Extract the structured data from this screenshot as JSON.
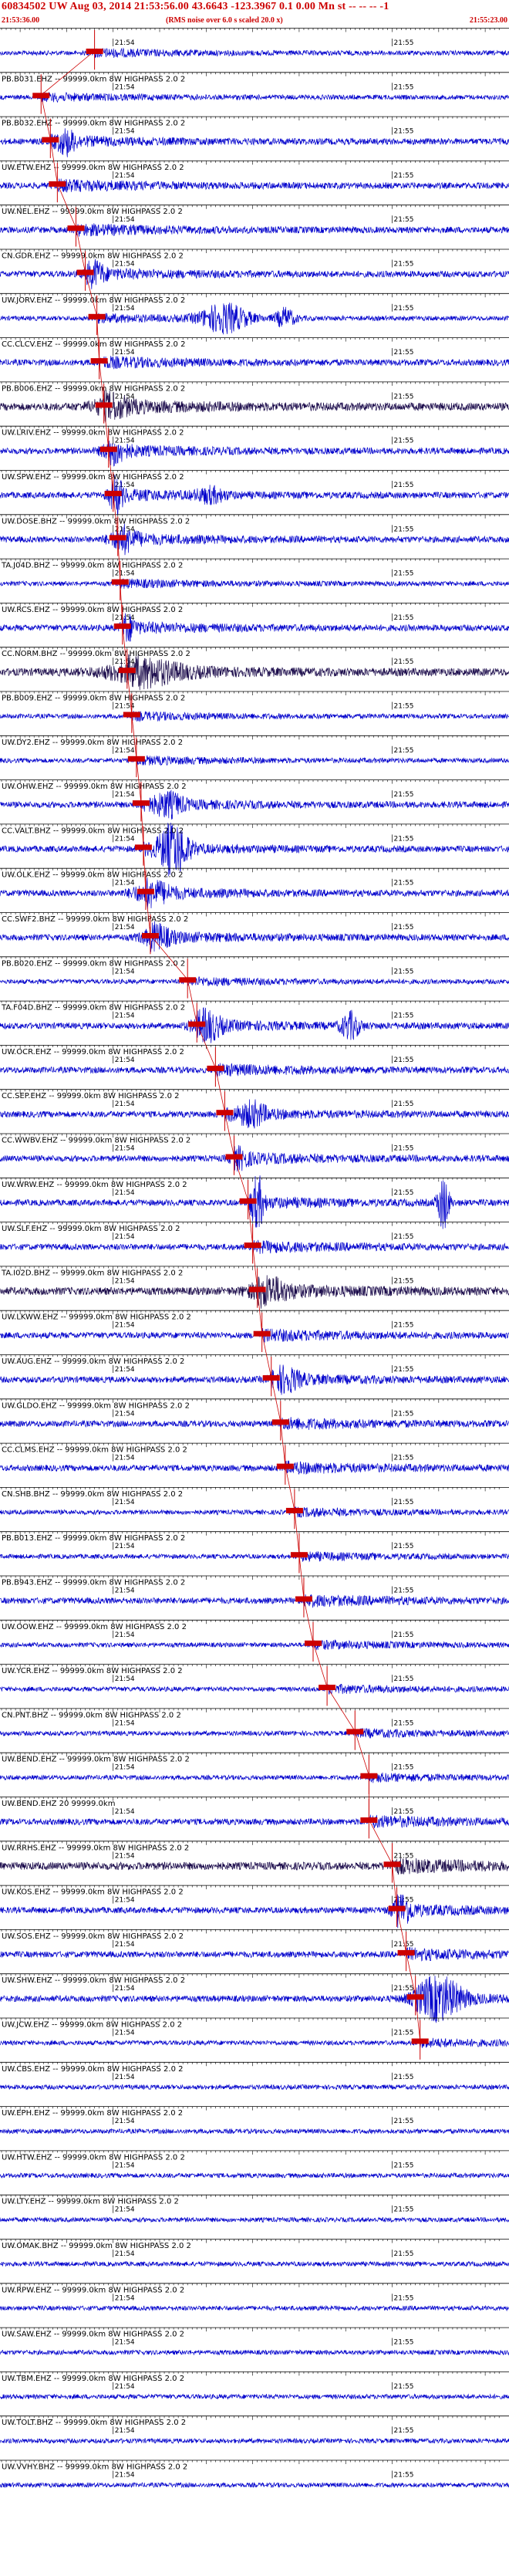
{
  "header": {
    "title": "60834502 UW Aug 03, 2014 21:53:56.00   43.6643  -123.3967   0.1 0.00 Mn st -- -- -- -1",
    "start_time": "21:53:36.00",
    "end_time": "21:55:23.00",
    "note": "(RMS noise over 6.0 s scaled 20.0 x)"
  },
  "minute_labels": [
    "21:54",
    "21:55"
  ],
  "colors": {
    "trace_blue": "#0000cc",
    "trace_dark": "#1a0a4a",
    "pick_red": "#cc0000",
    "label_text": "#000000",
    "axis": "#000000"
  },
  "traces": [
    {
      "label": "",
      "pick_sec": 20.0,
      "amp": 3,
      "bursts": []
    },
    {
      "label": "PB.B031.EHZ -- 99999.0km 8W  HIGHPASS  2.0  2",
      "pick_sec": 8.5,
      "amp": 3,
      "bursts": []
    },
    {
      "label": "PB.B032.EHZ -- 99999.0km 8W  HIGHPASS  2.0  2",
      "pick_sec": 10.5,
      "amp": 4,
      "bursts": [
        [
          14,
          1.8,
          3
        ]
      ]
    },
    {
      "label": "UW.ETW.EHZ -- 99999.0km 8W  HIGHPASS  2.0  2",
      "pick_sec": 12.0,
      "amp": 4,
      "bursts": []
    },
    {
      "label": "UW.NEL.EHZ -- 99999.0km 8W  HIGHPASS  2.0  2",
      "pick_sec": 16.0,
      "amp": 4,
      "bursts": []
    },
    {
      "label": "CN.GDR.EHZ -- 99999.0km 8W  HIGHPASS  2.0  2",
      "pick_sec": 18.0,
      "amp": 4,
      "bursts": [
        [
          20,
          2.0,
          3
        ]
      ]
    },
    {
      "label": "UW.JORV.EHZ -- 99999.0km 8W  HIGHPASS  2.0  2",
      "pick_sec": 20.5,
      "amp": 3,
      "bursts": [
        [
          48,
          5.0,
          6
        ],
        [
          61,
          2.0,
          4
        ]
      ]
    },
    {
      "label": "CC.CLCV.EHZ -- 99999.0km 8W  HIGHPASS  2.0  2",
      "pick_sec": 21.0,
      "amp": 4,
      "bursts": []
    },
    {
      "label": "PB.B006.EHZ -- 99999.0km 8W  HIGHPASS  2.0  2",
      "pick_sec": 22.0,
      "amp": 5,
      "bursts": [
        [
          23,
          4.0,
          2
        ]
      ]
    },
    {
      "label": "UW.LRIV.EHZ -- 99999.0km 8W  HIGHPASS  2.0  2",
      "pick_sec": 23.0,
      "amp": 4,
      "bursts": [
        [
          24,
          2.5,
          3
        ]
      ]
    },
    {
      "label": "UW.SPW.EHZ -- 99999.0km 8W  HIGHPASS  2.0  2",
      "pick_sec": 24.0,
      "amp": 4,
      "bursts": [
        [
          24.5,
          1.5,
          5
        ],
        [
          45,
          3.0,
          2
        ]
      ]
    },
    {
      "label": "UW.DOSE.BHZ -- 99999.0km 8W  HIGHPASS  2.0  2",
      "pick_sec": 25.0,
      "amp": 4,
      "bursts": [
        [
          26,
          3.0,
          3
        ]
      ]
    },
    {
      "label": "TA.J04D.BHZ -- 99999.0km 8W  HIGHPASS  2.0  2",
      "pick_sec": 25.5,
      "amp": 3,
      "bursts": []
    },
    {
      "label": "UW.RCS.EHZ -- 99999.0km 8W  HIGHPASS  2.0  2",
      "pick_sec": 26.0,
      "amp": 4,
      "bursts": [
        [
          27,
          1.5,
          3
        ]
      ]
    },
    {
      "label": "CC.NORM.BHZ -- 99999.0km 8W  HIGHPASS  2.0  2",
      "pick_sec": 27.0,
      "amp": 5,
      "bursts": [
        [
          30,
          8.0,
          2.5
        ]
      ]
    },
    {
      "label": "PB.B009.EHZ -- 99999.0km 8W  HIGHPASS  2.0  2",
      "pick_sec": 28.0,
      "amp": 3,
      "bursts": []
    },
    {
      "label": "UW.DY2.EHZ -- 99999.0km 8W  HIGHPASS  2.0  2",
      "pick_sec": 29.0,
      "amp": 3,
      "bursts": []
    },
    {
      "label": "UW.OHW.EHZ -- 99999.0km 8W  HIGHPASS  2.0  2",
      "pick_sec": 30.0,
      "amp": 4,
      "bursts": [
        [
          36,
          3.0,
          3
        ]
      ]
    },
    {
      "label": "CC.VALT.BHZ -- 99999.0km 8W  HIGHPASS  2.0  2",
      "pick_sec": 30.5,
      "amp": 4,
      "bursts": [
        [
          37,
          3.0,
          8
        ]
      ]
    },
    {
      "label": "UW.OLK.EHZ -- 99999.0km 8W  HIGHPASS  2.0  2",
      "pick_sec": 31.0,
      "amp": 4,
      "bursts": [
        [
          32,
          4.0,
          3
        ]
      ]
    },
    {
      "label": "CC.SWF2.BHZ -- 99999.0km 8W  HIGHPASS  2.0  2",
      "pick_sec": 32.0,
      "amp": 4,
      "bursts": [
        [
          33,
          3.0,
          3
        ]
      ]
    },
    {
      "label": "PB.B020.EHZ -- 99999.0km 8W  HIGHPASS  2.0  2",
      "pick_sec": 40.0,
      "amp": 3,
      "bursts": []
    },
    {
      "label": "TA.F04D.BHZ -- 99999.0km 8W  HIGHPASS  2.0  2",
      "pick_sec": 42.0,
      "amp": 4,
      "bursts": [
        [
          44,
          3.0,
          4
        ],
        [
          75,
          2.0,
          4
        ]
      ]
    },
    {
      "label": "UW.OCR.EHZ -- 99999.0km 8W  HIGHPASS  2.0  2",
      "pick_sec": 46.0,
      "amp": 4,
      "bursts": []
    },
    {
      "label": "CC.SEP.EHZ -- 99999.0km 8W  HIGHPASS  2.0  2",
      "pick_sec": 48.0,
      "amp": 4,
      "bursts": [
        [
          54,
          3.0,
          3
        ]
      ]
    },
    {
      "label": "CC.WWBV.EHZ -- 99999.0km 8W  HIGHPASS  2.0  2",
      "pick_sec": 50.0,
      "amp": 4,
      "bursts": [
        [
          51,
          2.0,
          2
        ]
      ]
    },
    {
      "label": "UW.WRW.EHZ -- 99999.0km 8W  HIGHPASS  2.0  2",
      "pick_sec": 53.0,
      "amp": 4,
      "bursts": [
        [
          55,
          1.2,
          9
        ],
        [
          95,
          1.2,
          9
        ]
      ]
    },
    {
      "label": "UW.SLF.EHZ -- 99999.0km 8W  HIGHPASS  2.0  2",
      "pick_sec": 54.0,
      "amp": 4,
      "bursts": []
    },
    {
      "label": "TA.I02D.BHZ -- 99999.0km 8W  HIGHPASS  2.0  2",
      "pick_sec": 55.0,
      "amp": 5,
      "bursts": [
        [
          57,
          4.0,
          2.5
        ]
      ]
    },
    {
      "label": "UW.LKWW.EHZ -- 99999.0km 8W  HIGHPASS  2.0  2",
      "pick_sec": 56.0,
      "amp": 4,
      "bursts": []
    },
    {
      "label": "UW.AUG.EHZ -- 99999.0km 8W  HIGHPASS  2.0  2",
      "pick_sec": 58.0,
      "amp": 4,
      "bursts": [
        [
          61,
          3.0,
          3
        ]
      ]
    },
    {
      "label": "UW.GLDO.EHZ -- 99999.0km 8W  HIGHPASS  2.0  2",
      "pick_sec": 60.0,
      "amp": 4,
      "bursts": []
    },
    {
      "label": "CC.CLMS.EHZ -- 99999.0km 8W  HIGHPASS  2.0  2",
      "pick_sec": 61.0,
      "amp": 4,
      "bursts": []
    },
    {
      "label": "CN.SHB.BHZ -- 99999.0km 8W  HIGHPASS  2.0  2",
      "pick_sec": 63.0,
      "amp": 3,
      "bursts": []
    },
    {
      "label": "PB.B013.EHZ -- 99999.0km 8W  HIGHPASS  2.0  2",
      "pick_sec": 64.0,
      "amp": 3,
      "bursts": []
    },
    {
      "label": "PB.B943.EHZ -- 99999.0km 8W  HIGHPASS  2.0  2",
      "pick_sec": 65.0,
      "amp": 4,
      "bursts": []
    },
    {
      "label": "UW.OOW.EHZ -- 99999.0km 8W  HIGHPASS  2.0  2",
      "pick_sec": 67.0,
      "amp": 3,
      "bursts": []
    },
    {
      "label": "UW.YCR.EHZ -- 99999.0km 8W  HIGHPASS  2.0  2",
      "pick_sec": 70.0,
      "amp": 3,
      "bursts": []
    },
    {
      "label": "CN.PNT.BHZ -- 99999.0km 8W  HIGHPASS  2.0  2",
      "pick_sec": 76.0,
      "amp": 3,
      "bursts": []
    },
    {
      "label": "UW.BEND.EHZ -- 99999.0km 8W  HIGHPASS  2.0  2",
      "pick_sec": 79.0,
      "amp": 3,
      "bursts": []
    },
    {
      "label": "UW.BEND.EHZ 20 99999.0km",
      "pick_sec": 79.0,
      "amp": 4,
      "bursts": []
    },
    {
      "label": "UW.RRHS.EHZ -- 99999.0km 8W  HIGHPASS  2.0  2",
      "pick_sec": 84.0,
      "amp": 5,
      "bursts": []
    },
    {
      "label": "UW.KOS.EHZ -- 99999.0km 8W  HIGHPASS  2.0  2",
      "pick_sec": 85.0,
      "amp": 4,
      "bursts": [
        [
          86,
          2.0,
          4
        ]
      ]
    },
    {
      "label": "UW.SOS.EHZ -- 99999.0km 8W  HIGHPASS  2.0  2",
      "pick_sec": 87.0,
      "amp": 4,
      "bursts": []
    },
    {
      "label": "UW.SHW.EHZ -- 99999.0km 8W  HIGHPASS  2.0  2",
      "pick_sec": 89.0,
      "amp": 4,
      "bursts": [
        [
          94,
          5.0,
          6
        ]
      ]
    },
    {
      "label": "UW.JCW.EHZ -- 99999.0km 8W  HIGHPASS  2.0  2",
      "pick_sec": 90.0,
      "amp": 3,
      "bursts": []
    },
    {
      "label": "UW.CBS.EHZ -- 99999.0km 8W  HIGHPASS  2.0  2",
      "pick_sec": null,
      "amp": 3,
      "bursts": []
    },
    {
      "label": "UW.EPH.EHZ -- 99999.0km 8W  HIGHPASS  2.0  2",
      "pick_sec": null,
      "amp": 3,
      "bursts": []
    },
    {
      "label": "UW.HTW.EHZ -- 99999.0km 8W  HIGHPASS  2.0  2",
      "pick_sec": null,
      "amp": 3,
      "bursts": []
    },
    {
      "label": "UW.LTY.EHZ -- 99999.0km 8W  HIGHPASS  2.0  2",
      "pick_sec": null,
      "amp": 3,
      "bursts": []
    },
    {
      "label": "UW.OMAK.BHZ -- 99999.0km 8W  HIGHPASS  2.0  2",
      "pick_sec": null,
      "amp": 3,
      "bursts": []
    },
    {
      "label": "UW.RPW.EHZ -- 99999.0km 8W  HIGHPASS  2.0  2",
      "pick_sec": null,
      "amp": 3,
      "bursts": []
    },
    {
      "label": "UW.SAW.EHZ -- 99999.0km 8W  HIGHPASS  2.0  2",
      "pick_sec": null,
      "amp": 3,
      "bursts": []
    },
    {
      "label": "UW.TBM.EHZ -- 99999.0km 8W  HIGHPASS  2.0  2",
      "pick_sec": null,
      "amp": 3,
      "bursts": []
    },
    {
      "label": "UW.TOLT.BHZ -- 99999.0km 8W  HIGHPASS  2.0  2",
      "pick_sec": null,
      "amp": 3,
      "bursts": []
    },
    {
      "label": "UW.VVHY.BHZ -- 99999.0km 8W  HIGHPASS  2.0  2",
      "pick_sec": null,
      "amp": 3,
      "bursts": []
    }
  ]
}
